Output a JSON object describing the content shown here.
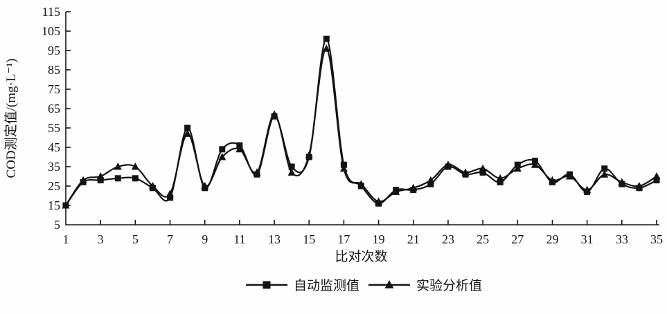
{
  "figure": {
    "background": "#fefefe",
    "ink_color": "#141414"
  },
  "chart_data": {
    "type": "line",
    "title": "",
    "xlabel": "比对次数",
    "ylabel": "COD测定值/(mg·L⁻¹)",
    "x": [
      1,
      2,
      3,
      4,
      5,
      6,
      7,
      8,
      9,
      10,
      11,
      12,
      13,
      14,
      15,
      16,
      17,
      18,
      19,
      20,
      21,
      22,
      23,
      24,
      25,
      26,
      27,
      28,
      29,
      30,
      31,
      32,
      33,
      34,
      35
    ],
    "x_tick_labels": [
      "1",
      "3",
      "5",
      "7",
      "9",
      "11",
      "13",
      "15",
      "17",
      "19",
      "21",
      "23",
      "25",
      "27",
      "29",
      "31",
      "33",
      "35"
    ],
    "ylim": [
      5,
      115
    ],
    "ytick_step": 10,
    "ytick_labels": [
      "5",
      "15",
      "25",
      "35",
      "45",
      "55",
      "65",
      "75",
      "85",
      "95",
      "105",
      "115"
    ],
    "grid": false,
    "legend_position": "bottom-center",
    "series": [
      {
        "name": "自动监测值",
        "marker": "square",
        "color": "#141414",
        "values": [
          15,
          27,
          28,
          29,
          29,
          24,
          19,
          55,
          24,
          44,
          46,
          31,
          61,
          35,
          40,
          101,
          36,
          25,
          16,
          23,
          23,
          26,
          35,
          31,
          32,
          27,
          36,
          38,
          27,
          31,
          22,
          34,
          26,
          24,
          28
        ]
      },
      {
        "name": "实验分析值",
        "marker": "triangle",
        "color": "#141414",
        "values": [
          15,
          28,
          30,
          35,
          35,
          25,
          21,
          52,
          25,
          40,
          44,
          32,
          62,
          32,
          41,
          96,
          34,
          26,
          17,
          22,
          24,
          28,
          36,
          32,
          34,
          29,
          34,
          36,
          28,
          30,
          23,
          31,
          27,
          25,
          30
        ]
      }
    ]
  }
}
